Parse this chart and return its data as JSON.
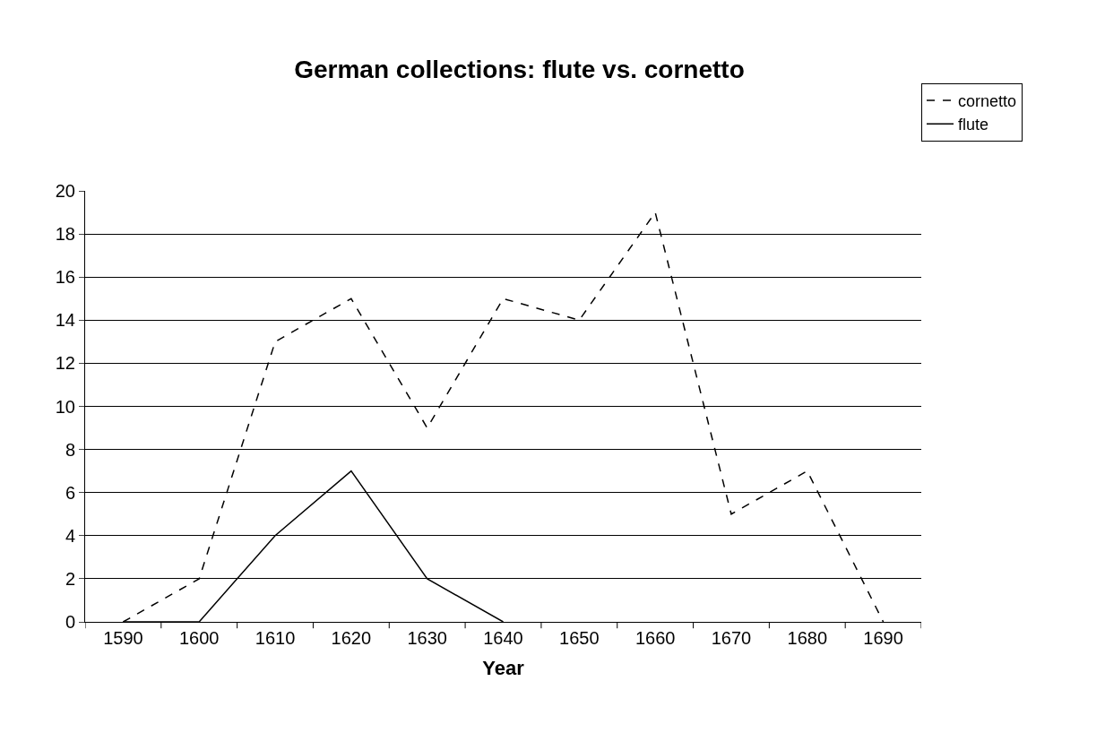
{
  "chart_data": {
    "type": "line",
    "title": "German collections: flute vs. cornetto",
    "xlabel": "Year",
    "categories": [
      "1590",
      "1600",
      "1610",
      "1620",
      "1630",
      "1640",
      "1650",
      "1660",
      "1670",
      "1680",
      "1690"
    ],
    "series": [
      {
        "name": "cornetto",
        "color": "#000000",
        "line_style": "dashed",
        "values": [
          0,
          2,
          13,
          15,
          9,
          15,
          14,
          19,
          5,
          7,
          0
        ]
      },
      {
        "name": "flute",
        "color": "#000000",
        "line_style": "solid",
        "values": [
          0,
          0,
          4,
          7,
          2,
          0,
          null,
          null,
          null,
          null,
          null
        ]
      }
    ],
    "ylim": [
      0,
      20
    ],
    "yticks": [
      0,
      2,
      4,
      6,
      8,
      10,
      12,
      14,
      16,
      18,
      20
    ],
    "grid": "y",
    "legend": "top right",
    "marker": "none"
  }
}
